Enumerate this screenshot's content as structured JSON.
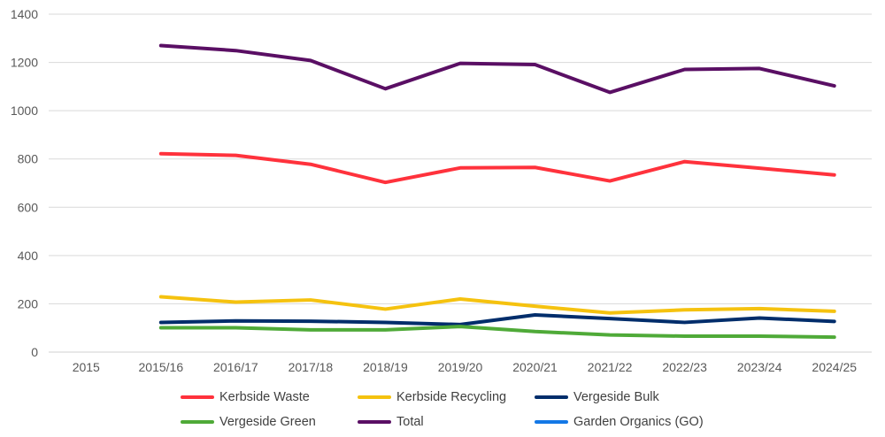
{
  "chart_data": {
    "type": "line",
    "title": "",
    "xlabel": "",
    "ylabel": "",
    "ylim": [
      0,
      1400
    ],
    "yticks": [
      0,
      200,
      400,
      600,
      800,
      1000,
      1200,
      1400
    ],
    "grid": true,
    "legend_position": "bottom",
    "categories": [
      "2015",
      "2015/16",
      "2016/17",
      "2017/18",
      "2018/19",
      "2019/20",
      "2020/21",
      "2021/22",
      "2022/23",
      "2023/24",
      "2024/25"
    ],
    "series": [
      {
        "name": "Kerbside Waste",
        "color": "#ff323c",
        "values": [
          null,
          822,
          815,
          778,
          703,
          763,
          765,
          709,
          789,
          762,
          734
        ]
      },
      {
        "name": "Kerbside Recycling",
        "color": "#f5c20f",
        "values": [
          null,
          229,
          207,
          216,
          178,
          220,
          190,
          162,
          175,
          180,
          169
        ]
      },
      {
        "name": "Vergeside Bulk",
        "color": "#002d6b",
        "values": [
          null,
          123,
          129,
          128,
          123,
          114,
          154,
          139,
          123,
          141,
          127
        ]
      },
      {
        "name": "Vergeside Green",
        "color": "#4faa38",
        "values": [
          null,
          101,
          101,
          92,
          92,
          106,
          85,
          71,
          66,
          66,
          62
        ]
      },
      {
        "name": "Total",
        "color": "#5a0f64",
        "values": [
          null,
          1270,
          1249,
          1208,
          1091,
          1196,
          1191,
          1076,
          1171,
          1175,
          1103
        ]
      },
      {
        "name": "Garden Organics (GO)",
        "color": "#1478e6",
        "values": [
          null,
          null,
          null,
          null,
          null,
          null,
          null,
          null,
          null,
          null,
          null
        ]
      }
    ]
  }
}
